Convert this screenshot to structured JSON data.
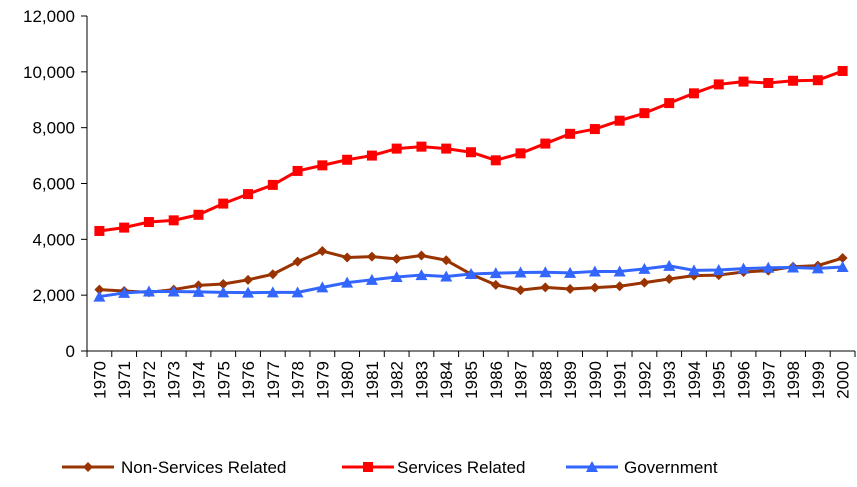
{
  "chart_data": {
    "type": "line",
    "title": "",
    "xlabel": "",
    "ylabel": "",
    "x": [
      1970,
      1971,
      1972,
      1973,
      1974,
      1975,
      1976,
      1977,
      1978,
      1979,
      1980,
      1981,
      1982,
      1983,
      1984,
      1985,
      1986,
      1987,
      1988,
      1989,
      1990,
      1991,
      1992,
      1993,
      1994,
      1995,
      1996,
      1997,
      1998,
      1999,
      2000
    ],
    "ylim": [
      0,
      12000
    ],
    "yticks": [
      0,
      2000,
      4000,
      6000,
      8000,
      10000,
      12000
    ],
    "ytick_labels": [
      "0",
      "2,000",
      "4,000",
      "6,000",
      "8,000",
      "10,000",
      "12,000"
    ],
    "xtick_labels": [
      "1970",
      "1971",
      "1972",
      "1973",
      "1974",
      "1975",
      "1976",
      "1977",
      "1978",
      "1979",
      "1980",
      "1981",
      "1982",
      "1983",
      "1984",
      "1985",
      "1986",
      "1987",
      "1988",
      "1989",
      "1990",
      "1991",
      "1992",
      "1993",
      "1994",
      "1995",
      "1996",
      "1997",
      "1998",
      "1999",
      "2000"
    ],
    "grid": false,
    "legend_position": "bottom",
    "series": [
      {
        "name": "Non-Services Related",
        "color": "#993300",
        "marker": "diamond",
        "values": [
          2200,
          2150,
          2100,
          2200,
          2350,
          2400,
          2550,
          2750,
          3200,
          3580,
          3350,
          3380,
          3300,
          3420,
          3250,
          2750,
          2370,
          2180,
          2280,
          2220,
          2270,
          2320,
          2450,
          2580,
          2700,
          2720,
          2830,
          2880,
          3020,
          3060,
          3330
        ]
      },
      {
        "name": "Services Related",
        "color": "#ff0000",
        "marker": "square",
        "values": [
          4300,
          4420,
          4620,
          4680,
          4880,
          5280,
          5620,
          5950,
          6450,
          6650,
          6850,
          7000,
          7250,
          7320,
          7250,
          7120,
          6830,
          7080,
          7430,
          7780,
          7950,
          8250,
          8520,
          8880,
          9230,
          9550,
          9650,
          9600,
          9680,
          9700,
          10030
        ]
      },
      {
        "name": "Government",
        "color": "#3366ff",
        "marker": "triangle",
        "values": [
          1950,
          2080,
          2130,
          2130,
          2120,
          2100,
          2090,
          2100,
          2100,
          2280,
          2450,
          2550,
          2650,
          2720,
          2670,
          2760,
          2790,
          2810,
          2820,
          2800,
          2850,
          2850,
          2940,
          3050,
          2890,
          2900,
          2950,
          2980,
          2990,
          2960,
          3010
        ]
      }
    ]
  }
}
